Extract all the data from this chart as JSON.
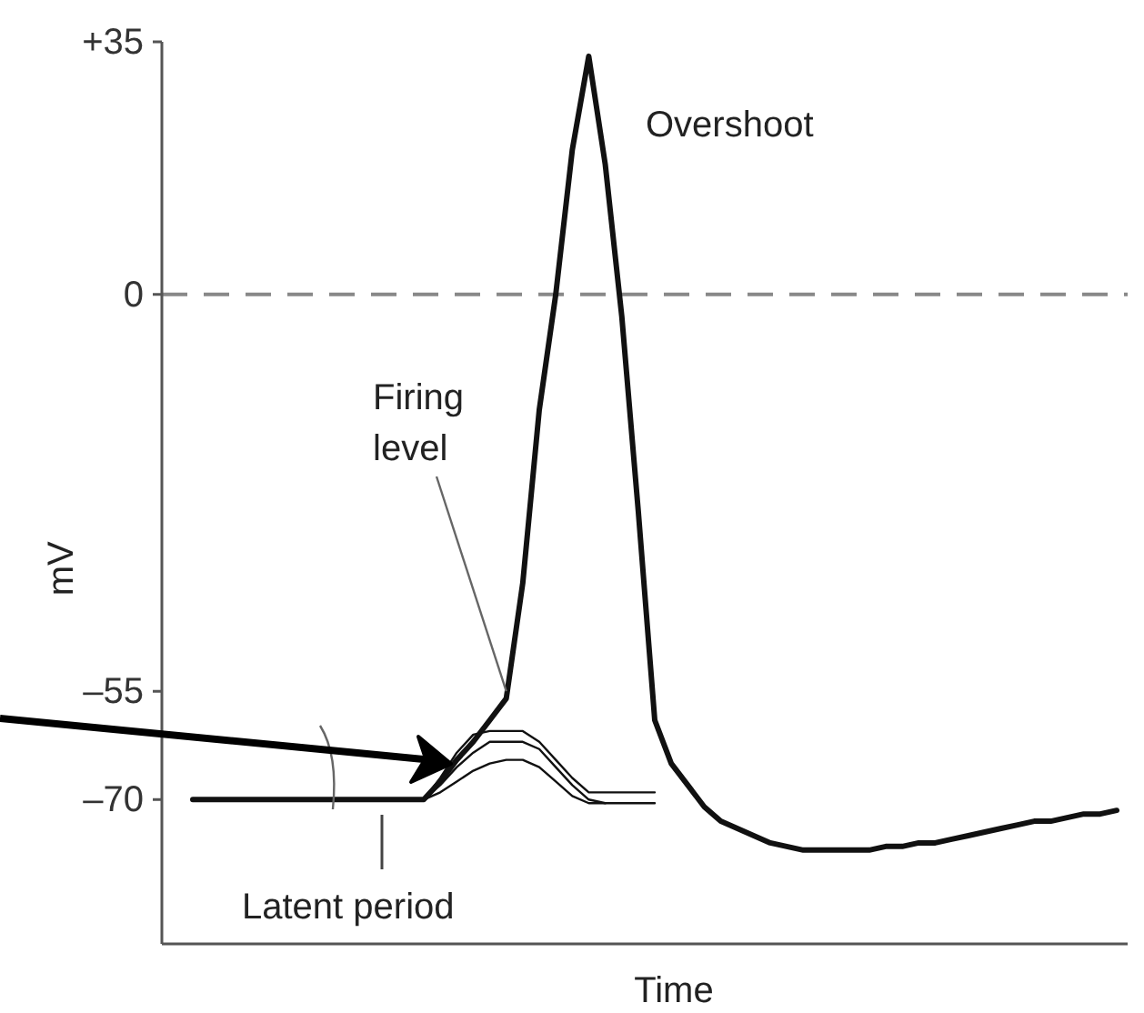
{
  "chart_data": {
    "type": "line",
    "xlabel": "Time",
    "ylabel": "mV",
    "categories": [
      null,
      null,
      null,
      null,
      null,
      null,
      null,
      null,
      null,
      null,
      null,
      null,
      null,
      null,
      null,
      null,
      null,
      null,
      null,
      null,
      null,
      null,
      null,
      null,
      null,
      null,
      null,
      null,
      null,
      null,
      null,
      null,
      null,
      null,
      null,
      null,
      null,
      null,
      null,
      null,
      null,
      null,
      null,
      null,
      null,
      null,
      null,
      null,
      null,
      null,
      null,
      null,
      null,
      null,
      null,
      null,
      null
    ],
    "series": [
      {
        "color": "#111111",
        "values": [
          -70,
          -70,
          -70,
          -70,
          -70,
          -70,
          -70,
          -70,
          -70,
          -70,
          -70,
          -70,
          -70,
          -70,
          -70,
          -67.5,
          -64.5,
          -62,
          -59,
          -56,
          -40,
          -16,
          0,
          20,
          33,
          18,
          -3,
          -30,
          -59,
          -65,
          -68,
          -71,
          -73,
          -74,
          -75,
          -76,
          -76.5,
          -77,
          -77,
          -77,
          -77,
          -77,
          -76.5,
          -76.5,
          -76,
          -76,
          -75.5,
          -75,
          -74.5,
          -74,
          -73.5,
          -73,
          -73,
          -72.5,
          -72,
          -72,
          -71.5
        ]
      },
      {
        "color": "#111111",
        "type": "line",
        "values": [
          null,
          null,
          null,
          null,
          null,
          null,
          null,
          null,
          null,
          null,
          null,
          null,
          null,
          null,
          -70,
          -67,
          -63.5,
          -61,
          -60.5,
          -60.5,
          -60.5,
          -62,
          -64.5,
          -67,
          -69,
          -69,
          -69,
          -69,
          -69,
          null,
          null,
          null,
          null,
          null,
          null,
          null,
          null,
          null,
          null,
          null,
          null,
          null,
          null,
          null,
          null,
          null,
          null,
          null,
          null,
          null,
          null,
          null,
          null,
          null,
          null,
          null,
          null
        ]
      },
      {
        "color": "#111111",
        "type": "line",
        "values": [
          null,
          null,
          null,
          null,
          null,
          null,
          null,
          null,
          null,
          null,
          null,
          null,
          null,
          null,
          -70,
          -68,
          -65.5,
          -63.5,
          -62,
          -62,
          -62,
          -63,
          -65.5,
          -68,
          -70,
          -70.5,
          -70.5,
          -70.5,
          -70.5,
          null,
          null,
          null,
          null,
          null,
          null,
          null,
          null,
          null,
          null,
          null,
          null,
          null,
          null,
          null,
          null,
          null,
          null,
          null,
          null,
          null,
          null,
          null,
          null,
          null,
          null,
          null,
          null
        ]
      },
      {
        "color": "#111111",
        "type": "line",
        "values": [
          null,
          null,
          null,
          null,
          null,
          null,
          null,
          null,
          null,
          null,
          null,
          null,
          null,
          null,
          -70,
          -69,
          -67.5,
          -66,
          -65,
          -64.5,
          -64.5,
          -65.5,
          -67.5,
          -69.5,
          -70.5,
          -70.5,
          null,
          null,
          null,
          null,
          null,
          null,
          null,
          null,
          null,
          null,
          null,
          null,
          null,
          null,
          null,
          null,
          null,
          null,
          null,
          null,
          null,
          null,
          null,
          null,
          null,
          null,
          null,
          null,
          null,
          null,
          null
        ]
      }
    ],
    "ylim": [
      -90,
      35
    ],
    "yticks": [
      {
        "value": 35,
        "label": "+35"
      },
      0,
      {
        "value": -55,
        "label": "–55"
      },
      {
        "value": -70,
        "label": "–70"
      }
    ],
    "tick_labels": "y",
    "ref_lines": [
      {
        "axis": "y",
        "value": 0,
        "color": "#888888",
        "line_style": "dashed"
      }
    ],
    "annotations": [
      "Overshoot",
      "Firing level",
      "Latent period"
    ]
  }
}
